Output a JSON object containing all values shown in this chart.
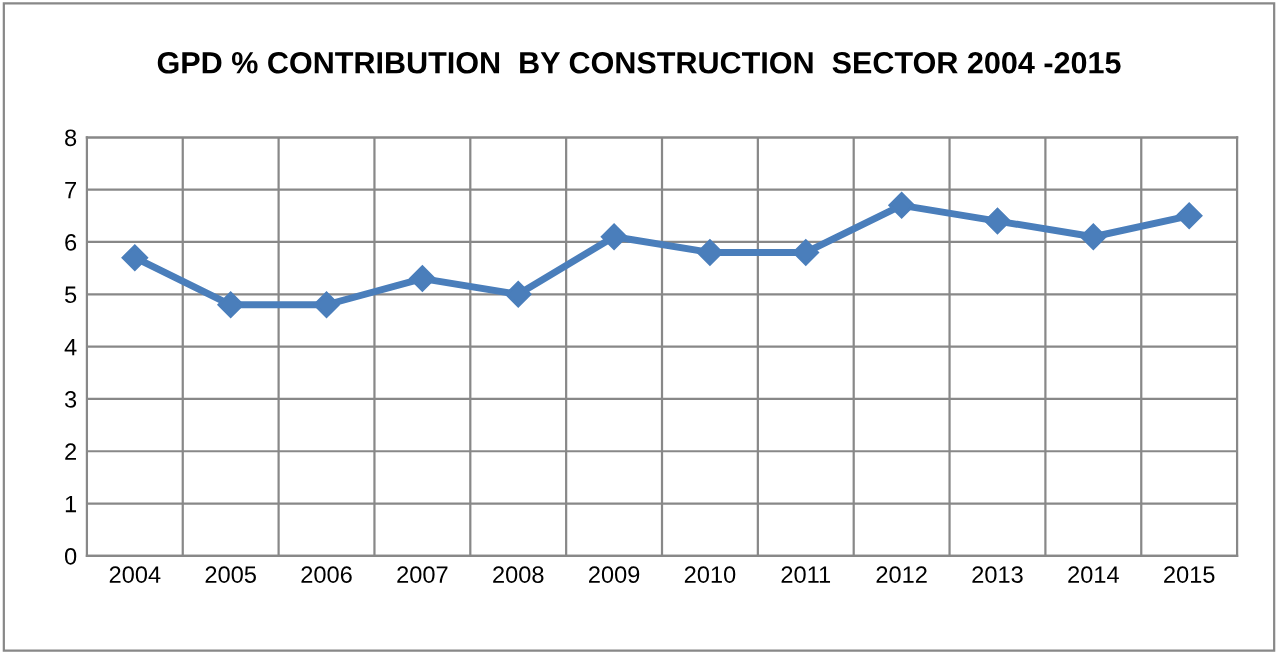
{
  "chart_data": {
    "type": "line",
    "title": "GPD % CONTRIBUTION  BY CONSTRUCTION  SECTOR 2004 -2015",
    "categories": [
      "2004",
      "2005",
      "2006",
      "2007",
      "2008",
      "2009",
      "2010",
      "2011",
      "2012",
      "2013",
      "2014",
      "2015"
    ],
    "series": [
      {
        "color": "#4a7ebb",
        "values": [
          5.7,
          4.8,
          4.8,
          5.3,
          5.0,
          6.1,
          5.8,
          5.8,
          6.7,
          6.4,
          6.1,
          6.5
        ]
      }
    ],
    "ylim": [
      0,
      8
    ],
    "yticks": [
      0,
      1,
      2,
      3,
      4,
      5,
      6,
      7,
      8
    ],
    "grid": true,
    "marker": "diamond",
    "line_style": "solid",
    "legend": false
  }
}
